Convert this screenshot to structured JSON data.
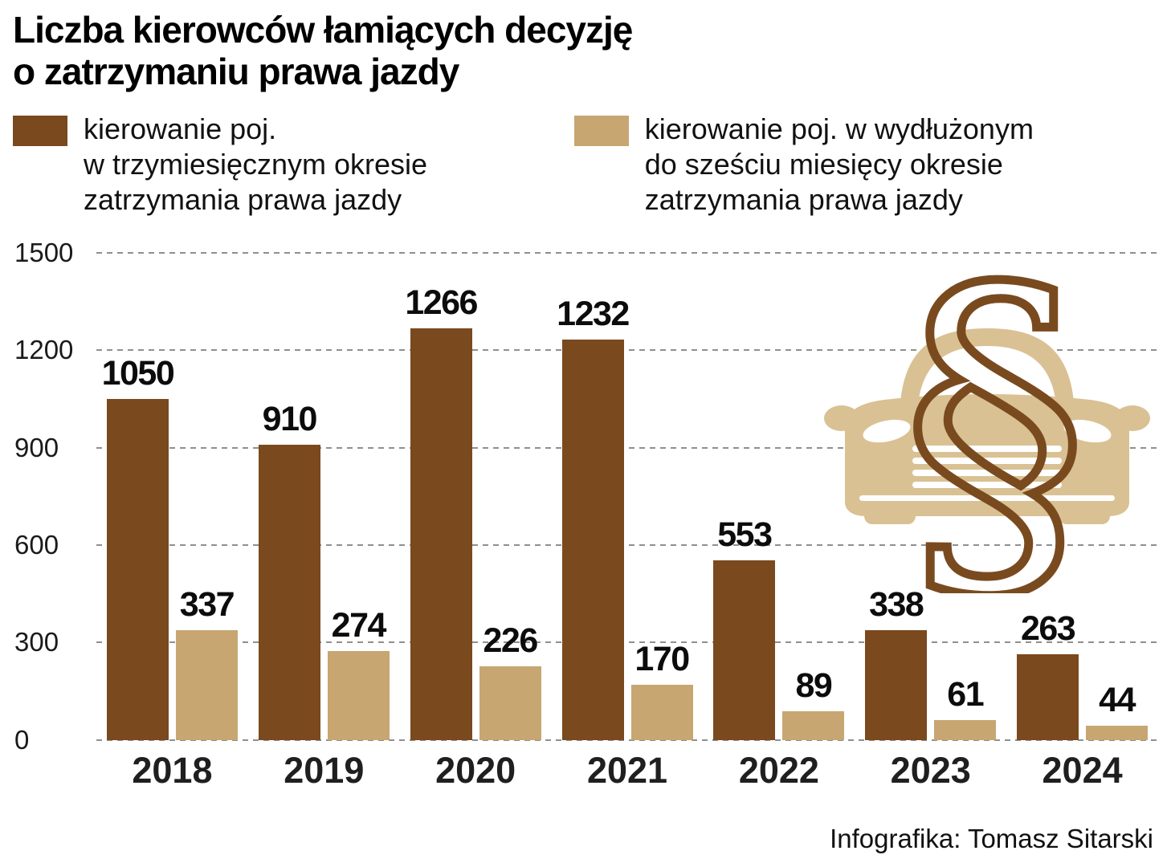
{
  "title": {
    "lines": [
      "Liczba kierowców łamiących decyzję",
      "o zatrzymaniu prawa jazdy"
    ]
  },
  "legend": {
    "items": [
      {
        "color": "#7a491e",
        "lines": [
          "kierowanie poj.",
          "w trzymiesięcznym okresie",
          "zatrzymania prawa jazdy"
        ]
      },
      {
        "color": "#c7a671",
        "lines": [
          "kierowanie poj. w wydłużonym",
          "do sześciu miesięcy okresie",
          "zatrzymania prawa jazdy"
        ]
      }
    ]
  },
  "chart_data": {
    "type": "bar",
    "title": "Liczba kierowców łamiących decyzję o zatrzymaniu prawa jazdy",
    "categories": [
      "2018",
      "2019",
      "2020",
      "2021",
      "2022",
      "2023",
      "2024"
    ],
    "series": [
      {
        "name": "kierowanie poj. w trzymiesięcznym okresie zatrzymania prawa jazdy",
        "color": "#7a491e",
        "values": [
          1050,
          910,
          1266,
          1232,
          553,
          338,
          263
        ]
      },
      {
        "name": "kierowanie poj. w wydłużonym do sześciu miesięcy okresie zatrzymania prawa jazdy",
        "color": "#c7a671",
        "values": [
          337,
          274,
          226,
          170,
          89,
          61,
          44
        ]
      }
    ],
    "y_ticks": [
      0,
      300,
      600,
      900,
      1200,
      1500
    ],
    "ylim": [
      0,
      1500
    ],
    "grid": "dashed-horizontal",
    "legend_position": "top"
  },
  "decoration": {
    "car_icon": "car-front-silhouette",
    "paragraph_icon": "section-sign",
    "car_color": "#d9c193",
    "paragraph_color": "#7a4a1f"
  },
  "credit": "Infografika: Tomasz Sitarski"
}
